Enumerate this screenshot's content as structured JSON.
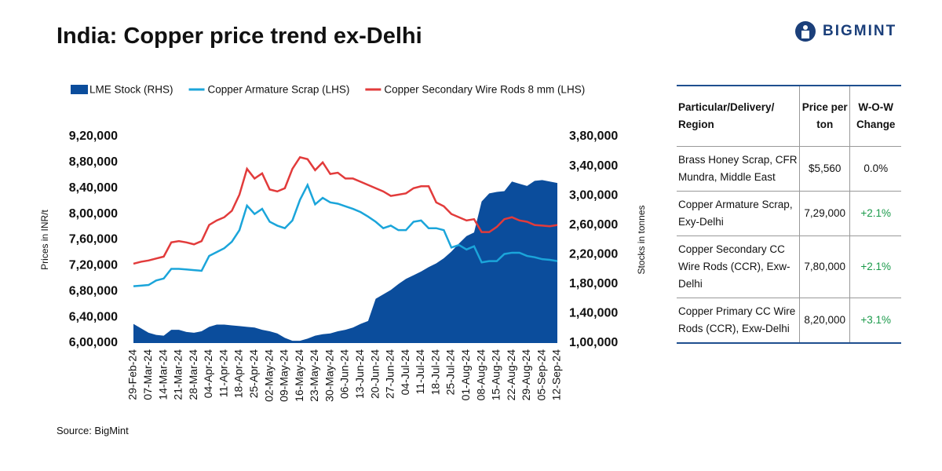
{
  "header": {
    "title": "India: Copper price trend ex-Delhi",
    "logo": "BIGMINT"
  },
  "chart_data": {
    "type": "line",
    "y_label": "Prices in INR/t",
    "y2_label": "Stocks in tonnes",
    "categories": [
      "29-Feb-24",
      null,
      "07-Mar-24",
      null,
      "14-Mar-24",
      null,
      "21-Mar-24",
      null,
      "28-Mar-24",
      null,
      "04-Apr-24",
      null,
      "11-Apr-24",
      null,
      "18-Apr-24",
      null,
      "25-Apr-24",
      null,
      "02-May-24",
      null,
      "09-May-24",
      null,
      "16-May-24",
      null,
      "23-May-24",
      null,
      "30-May-24",
      null,
      "06-Jun-24",
      null,
      "13-Jun-24",
      null,
      "20-Jun-24",
      null,
      "27-Jun-24",
      null,
      "04-Jul-24",
      null,
      "11-Jul-24",
      null,
      "18-Jul-24",
      null,
      "25-Jul-24",
      null,
      "01-Aug-24",
      null,
      "08-Aug-24",
      null,
      "15-Aug-24",
      null,
      "22-Aug-24",
      null,
      "29-Aug-24",
      null,
      "05-Sep-24",
      null,
      "12-Sep-24"
    ],
    "series": [
      {
        "name": "LME Stock (RHS)",
        "type": "area",
        "axis": "y2",
        "color": "#0b4d9c",
        "values": [
          126000,
          120000,
          114000,
          111000,
          110000,
          118000,
          118000,
          115000,
          114000,
          116000,
          122000,
          125000,
          125000,
          124000,
          123000,
          122000,
          121000,
          118000,
          116000,
          113000,
          107000,
          103000,
          103000,
          106000,
          110000,
          112000,
          113000,
          116000,
          118000,
          121000,
          126000,
          130000,
          160000,
          166000,
          172000,
          180000,
          187000,
          192000,
          197000,
          203000,
          208000,
          215000,
          224000,
          235000,
          245000,
          250000,
          292000,
          303000,
          305000,
          306000,
          319000,
          316000,
          313000,
          320000,
          321000,
          319000,
          317000
        ]
      },
      {
        "name": "Copper Armature Scrap (LHS)",
        "type": "line",
        "color": "#1ba5da",
        "values": [
          688000,
          689000,
          690000,
          697000,
          700000,
          715000,
          715000,
          714000,
          713000,
          712000,
          735000,
          741000,
          747000,
          757000,
          775000,
          813000,
          800000,
          808000,
          788000,
          782000,
          778000,
          790000,
          822000,
          845000,
          815000,
          825000,
          818000,
          816000,
          812000,
          808000,
          803000,
          796000,
          788000,
          778000,
          782000,
          775000,
          775000,
          788000,
          790000,
          778000,
          778000,
          775000,
          748000,
          752000,
          745000,
          750000,
          725000,
          727000,
          727000,
          738000,
          740000,
          740000,
          735000,
          733000,
          730000,
          729000,
          727000
        ]
      },
      {
        "name": "Copper Secondary Wire Rods 8 mm (LHS)",
        "type": "line",
        "color": "#e23b3b",
        "values": [
          723000,
          726000,
          728000,
          731000,
          734000,
          756000,
          758000,
          756000,
          753000,
          758000,
          783000,
          790000,
          795000,
          805000,
          830000,
          870000,
          855000,
          863000,
          838000,
          835000,
          840000,
          870000,
          888000,
          885000,
          868000,
          880000,
          862000,
          864000,
          855000,
          855000,
          850000,
          845000,
          840000,
          835000,
          828000,
          830000,
          832000,
          840000,
          843000,
          843000,
          818000,
          812000,
          800000,
          795000,
          790000,
          792000,
          772000,
          772000,
          780000,
          792000,
          795000,
          790000,
          788000,
          783000,
          782000,
          781000,
          783000
        ]
      }
    ],
    "ylim": [
      600000,
      920000
    ],
    "yticks": [
      {
        "value": 600000,
        "label": "6,00,000"
      },
      {
        "value": 640000,
        "label": "6,40,000"
      },
      {
        "value": 680000,
        "label": "6,80,000"
      },
      {
        "value": 720000,
        "label": "7,20,000"
      },
      {
        "value": 760000,
        "label": "7,60,000"
      },
      {
        "value": 800000,
        "label": "8,00,000"
      },
      {
        "value": 840000,
        "label": "8,40,000"
      },
      {
        "value": 880000,
        "label": "8,80,000"
      },
      {
        "value": 920000,
        "label": "9,20,000"
      }
    ],
    "y2lim": [
      100000,
      380000
    ],
    "y2ticks": [
      {
        "value": 100000,
        "label": "1,00,000"
      },
      {
        "value": 140000,
        "label": "1,40,000"
      },
      {
        "value": 180000,
        "label": "1,80,000"
      },
      {
        "value": 220000,
        "label": "2,20,000"
      },
      {
        "value": 260000,
        "label": "2,60,000"
      },
      {
        "value": 300000,
        "label": "3,00,000"
      },
      {
        "value": 340000,
        "label": "3,40,000"
      },
      {
        "value": 380000,
        "label": "3,80,000"
      }
    ],
    "grid": false,
    "legend": "top"
  },
  "table": {
    "header": [
      "Particular/Delivery/ Region",
      "Price per ton",
      "W-O-W Change"
    ],
    "rows": [
      [
        "Brass Honey Scrap, CFR Mundra, Middle East",
        "$5,560",
        "0.0%"
      ],
      [
        "Copper Armature Scrap, Exy-Delhi",
        "7,29,000",
        "+2.1%"
      ],
      [
        "Copper Secondary CC Wire Rods (CCR), Exw-Delhi",
        "7,80,000",
        "+2.1%"
      ],
      [
        "Copper Primary CC Wire Rods (CCR), Exw-Delhi",
        "8,20,000",
        "+3.1%"
      ]
    ]
  },
  "source": "Source: BigMint"
}
